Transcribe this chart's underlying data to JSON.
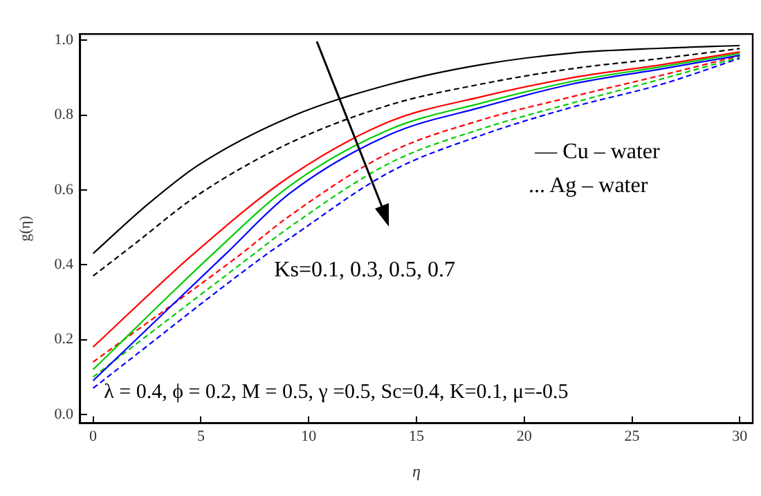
{
  "chart_data": {
    "type": "line",
    "xlabel": "η",
    "ylabel": "g(η)",
    "xlim": [
      -0.6,
      30.6
    ],
    "ylim": [
      -0.024,
      1.017
    ],
    "xticks": [
      0,
      5,
      10,
      15,
      20,
      25,
      30
    ],
    "yticks": [
      {
        "value": 0,
        "label": "0.0"
      },
      {
        "value": 0.2,
        "label": "0.2"
      },
      {
        "value": 0.4,
        "label": "0.4"
      },
      {
        "value": 0.6,
        "label": "0.6"
      },
      {
        "value": 0.8,
        "label": "0.8"
      },
      {
        "value": 1,
        "label": "1.0"
      }
    ],
    "grid": false,
    "legend": false,
    "marker": "none",
    "series": [
      {
        "color": "#000000",
        "line_style": "solid",
        "x": [
          0,
          2.5,
          4.9,
          9.1,
          13.8,
          18,
          22.2,
          26.4,
          30
        ],
        "values": [
          0.43,
          0.56,
          0.667,
          0.794,
          0.883,
          0.935,
          0.966,
          0.979,
          0.986
        ]
      },
      {
        "color": "#ff0000",
        "line_style": "solid",
        "x": [
          0,
          4.6,
          9.1,
          13.8,
          18,
          22.2,
          26.4,
          30
        ],
        "values": [
          0.18,
          0.426,
          0.635,
          0.784,
          0.849,
          0.9,
          0.935,
          0.969
        ]
      },
      {
        "color": "#00cc00",
        "line_style": "solid",
        "x": [
          0,
          5.5,
          9.1,
          13.8,
          18,
          22.2,
          26.4,
          30
        ],
        "values": [
          0.12,
          0.426,
          0.61,
          0.763,
          0.832,
          0.89,
          0.93,
          0.965
        ]
      },
      {
        "color": "#0000ff",
        "line_style": "solid",
        "x": [
          0,
          6.1,
          9.1,
          13.8,
          18,
          22.2,
          26.4,
          30
        ],
        "values": [
          0.09,
          0.426,
          0.59,
          0.749,
          0.821,
          0.883,
          0.924,
          0.96
        ]
      },
      {
        "color": "#000000",
        "line_style": "dashed",
        "x": [
          0,
          1.8,
          4.9,
          9.1,
          13.8,
          18,
          22.2,
          26.4,
          30
        ],
        "values": [
          0.37,
          0.45,
          0.588,
          0.725,
          0.828,
          0.883,
          0.924,
          0.952,
          0.978
        ]
      },
      {
        "color": "#ff0000",
        "line_style": "dashed",
        "x": [
          0,
          6.8,
          9.1,
          13.8,
          18,
          22.2,
          26.4,
          30
        ],
        "values": [
          0.14,
          0.426,
          0.53,
          0.701,
          0.787,
          0.849,
          0.907,
          0.959
        ]
      },
      {
        "color": "#00cc00",
        "line_style": "dashed",
        "x": [
          0,
          7.4,
          9.1,
          13.8,
          18,
          22.2,
          26.4,
          30
        ],
        "values": [
          0.1,
          0.426,
          0.5,
          0.673,
          0.763,
          0.832,
          0.897,
          0.955
        ]
      },
      {
        "color": "#0000ff",
        "line_style": "dashed",
        "x": [
          0,
          8,
          9.1,
          13.8,
          18,
          22.2,
          26.4,
          30
        ],
        "values": [
          0.07,
          0.426,
          0.47,
          0.649,
          0.746,
          0.821,
          0.883,
          0.952
        ]
      }
    ],
    "annotations": [
      "— Cu – water",
      "... Ag – water",
      "Ks=0.1, 0.3, 0.5, 0.7",
      "λ = 0.4, ϕ = 0.2, M = 0.5, γ =0.5, Sc=0.4, K=0.1, μ=-0.5"
    ]
  }
}
